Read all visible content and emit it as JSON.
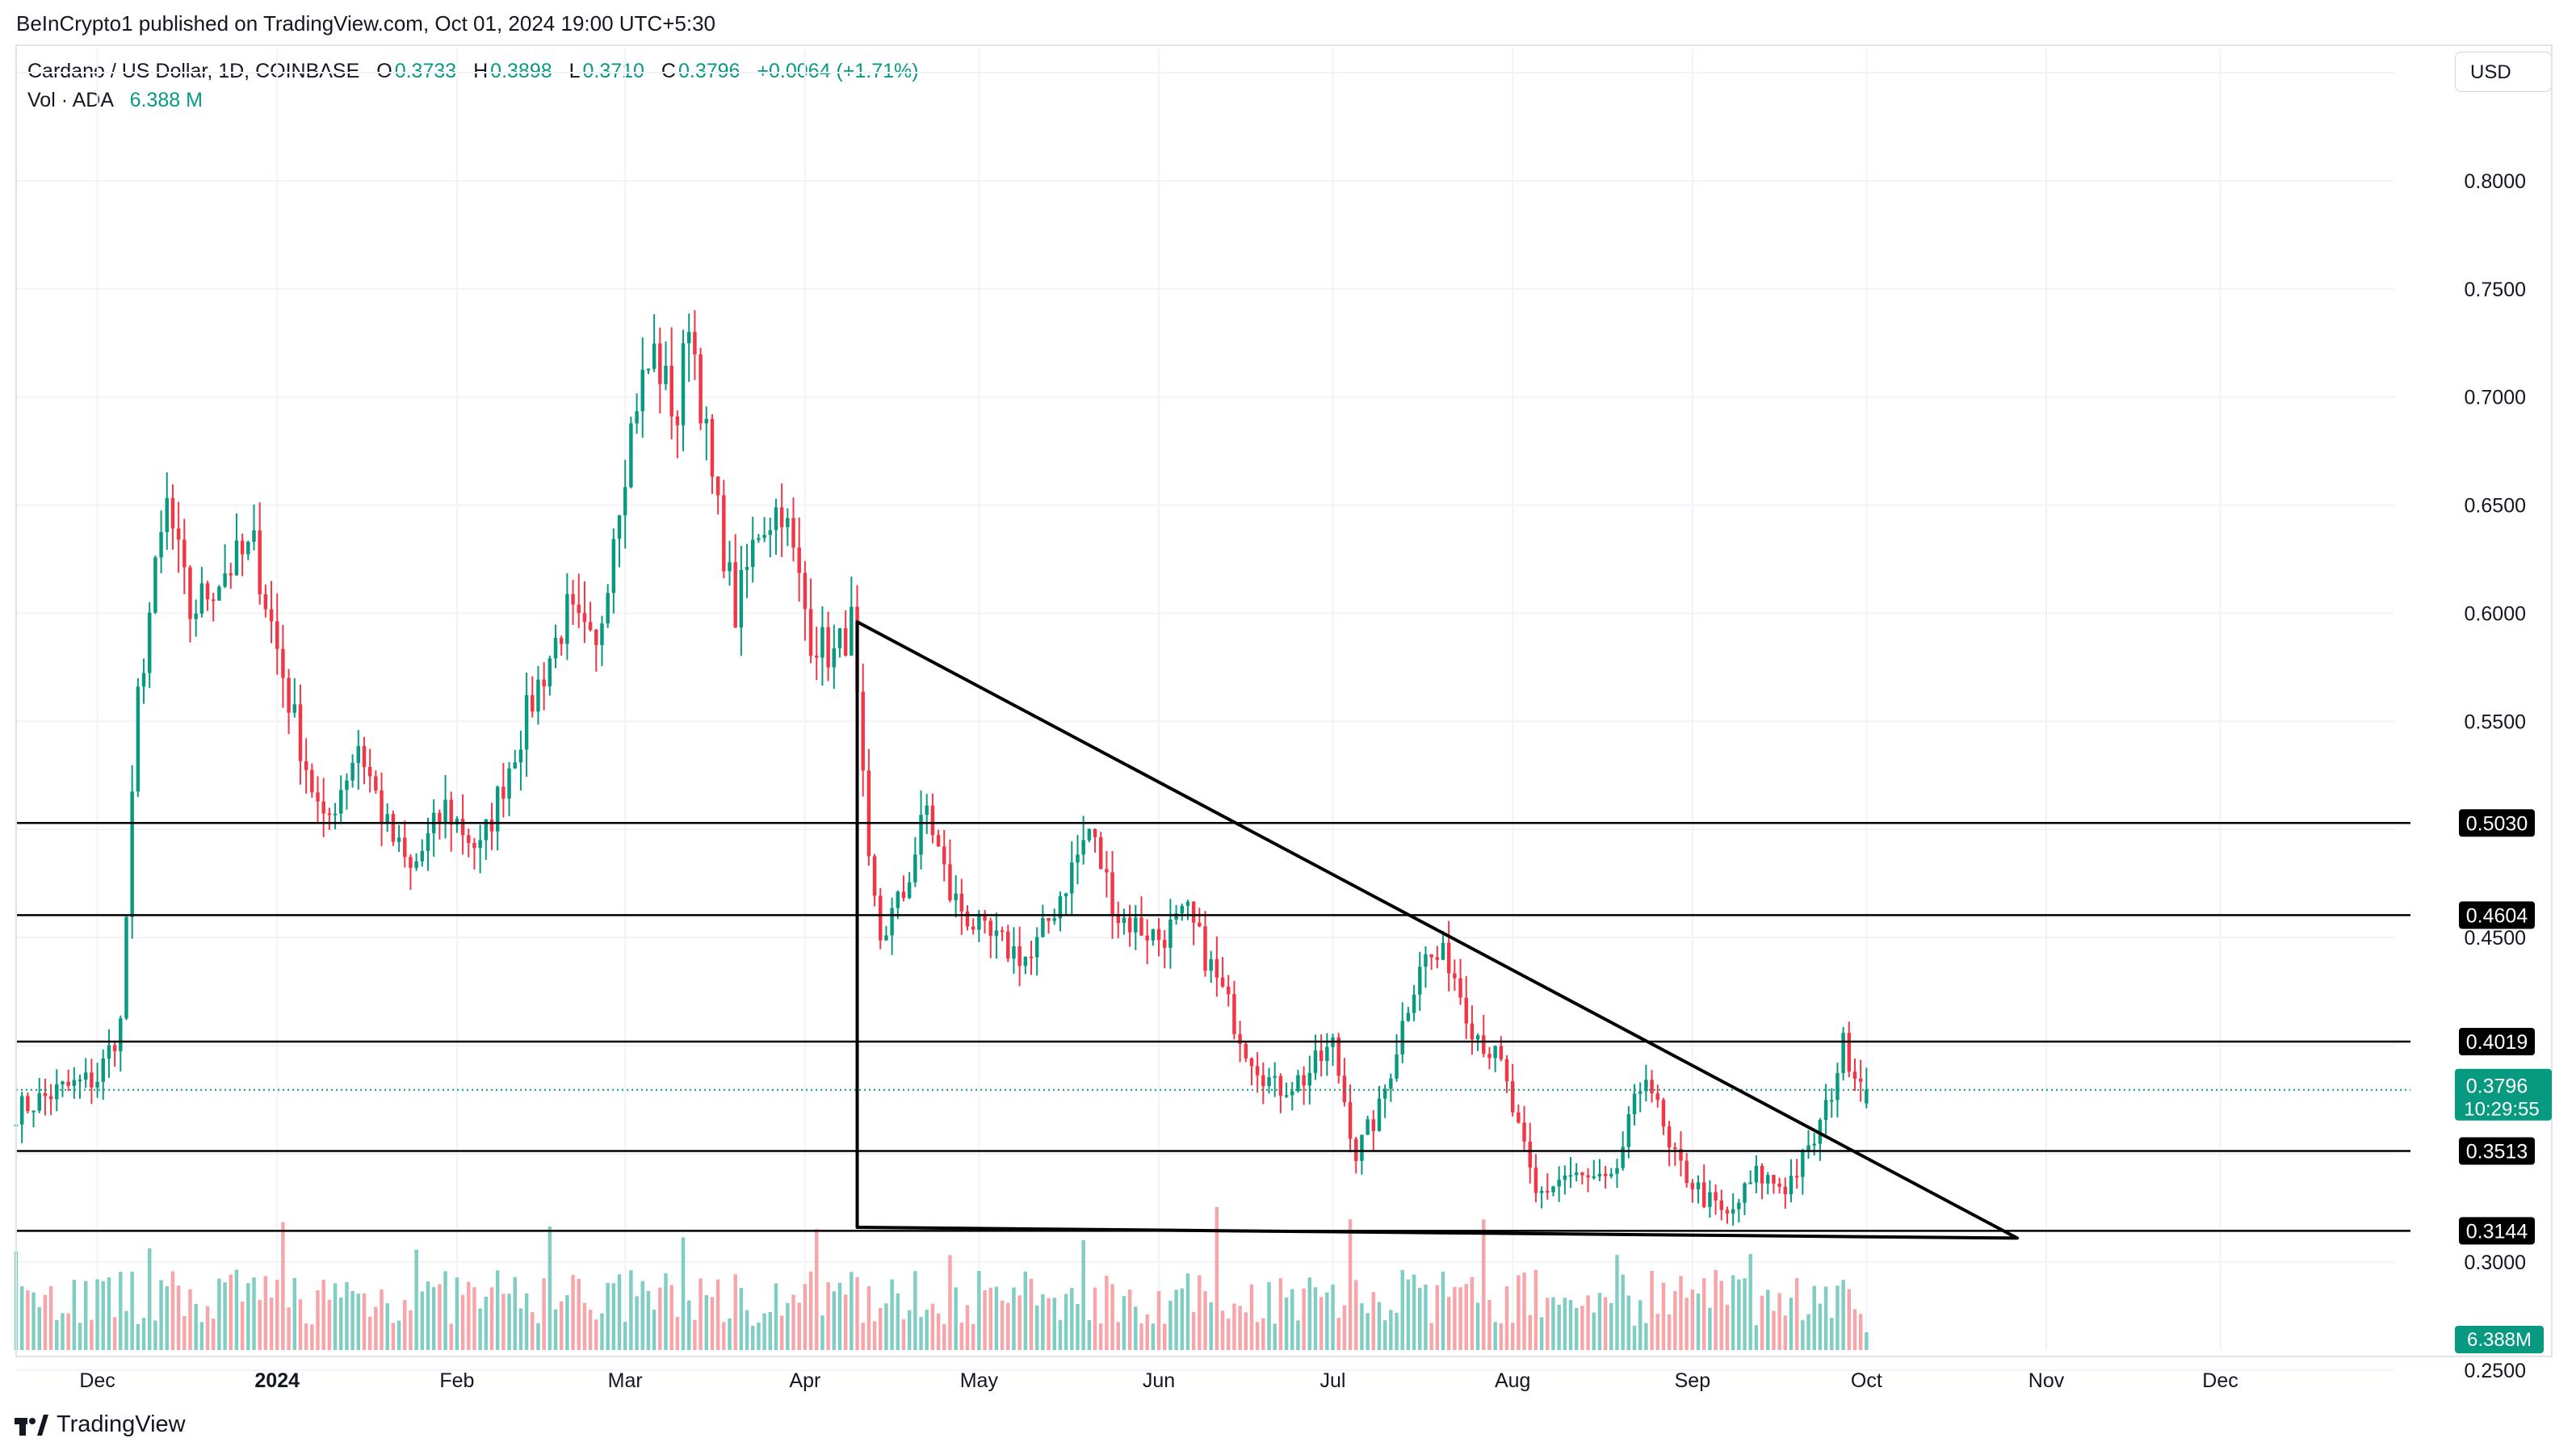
{
  "publisher_line": "BeInCrypto1 published on TradingView.com, Oct 01, 2024 19:00 UTC+5:30",
  "legend": {
    "symbol": "Cardano / US Dollar, 1D, COINBASE",
    "o_label": "O",
    "o_value": "0.3733",
    "h_label": "H",
    "h_value": "0.3898",
    "l_label": "L",
    "l_value": "0.3710",
    "c_label": "C",
    "c_value": "0.3796",
    "change": "+0.0064 (+1.71%)",
    "vol_label": "Vol · ADA",
    "vol_value": "6.388 M"
  },
  "currency_button": "USD",
  "footer_brand": "TradingView",
  "colors": {
    "up": "#089981",
    "down": "#F23645",
    "vol_up": "#7FCDC3",
    "vol_down": "#F7A5A9",
    "grid": "#F0F3FA",
    "line": "#000000",
    "last_price": "#089981"
  },
  "chart_data": {
    "type": "candlestick",
    "symbol": "Cardano / US Dollar",
    "interval": "1D",
    "exchange": "COINBASE",
    "x_ticks": [
      "Dec",
      "2024",
      "Feb",
      "Mar",
      "Apr",
      "May",
      "Jun",
      "Jul",
      "Aug",
      "Sep",
      "Oct",
      "Nov",
      "Dec"
    ],
    "y_ticks": [
      "0.2500",
      "0.3000",
      "0.4500",
      "0.5500",
      "0.6000",
      "0.6500",
      "0.7000",
      "0.7500",
      "0.8000"
    ],
    "ylim": [
      0.26,
      0.85
    ],
    "xlim": [
      "2023-11-17",
      "2024-12-31"
    ],
    "grid": true,
    "scale": "linear",
    "last_price": {
      "value": "0.3796",
      "countdown": "10:29:55"
    },
    "volume_last": "6.388M",
    "horizontal_levels": [
      {
        "value": 0.503,
        "label": "0.5030"
      },
      {
        "value": 0.4604,
        "label": "0.4604"
      },
      {
        "value": 0.4019,
        "label": "0.4019"
      },
      {
        "value": 0.3513,
        "label": "0.3513"
      },
      {
        "value": 0.3144,
        "label": "0.3144"
      }
    ],
    "triangle": [
      {
        "date": "2024-04-10",
        "price": 0.596
      },
      {
        "date": "2024-10-27",
        "price": 0.311
      },
      {
        "date": "2024-04-10",
        "price": 0.316
      }
    ],
    "ohlc_keypoints": [
      [
        "2023-11-17",
        0.37
      ],
      [
        "2023-11-25",
        0.38
      ],
      [
        "2023-12-01",
        0.385
      ],
      [
        "2023-12-05",
        0.41
      ],
      [
        "2023-12-08",
        0.56
      ],
      [
        "2023-12-10",
        0.6
      ],
      [
        "2023-12-13",
        0.65
      ],
      [
        "2023-12-17",
        0.6
      ],
      [
        "2023-12-23",
        0.62
      ],
      [
        "2023-12-28",
        0.63
      ],
      [
        "2024-01-03",
        0.56
      ],
      [
        "2024-01-09",
        0.5
      ],
      [
        "2024-01-15",
        0.54
      ],
      [
        "2024-01-20",
        0.5
      ],
      [
        "2024-01-24",
        0.48
      ],
      [
        "2024-01-30",
        0.51
      ],
      [
        "2024-02-05",
        0.49
      ],
      [
        "2024-02-10",
        0.53
      ],
      [
        "2024-02-14",
        0.56
      ],
      [
        "2024-02-20",
        0.6
      ],
      [
        "2024-02-25",
        0.58
      ],
      [
        "2024-02-28",
        0.64
      ],
      [
        "2024-03-03",
        0.7
      ],
      [
        "2024-03-06",
        0.72
      ],
      [
        "2024-03-10",
        0.69
      ],
      [
        "2024-03-12",
        0.74
      ],
      [
        "2024-03-16",
        0.66
      ],
      [
        "2024-03-20",
        0.6
      ],
      [
        "2024-03-24",
        0.64
      ],
      [
        "2024-03-28",
        0.65
      ],
      [
        "2024-04-02",
        0.59
      ],
      [
        "2024-04-06",
        0.58
      ],
      [
        "2024-04-09",
        0.595
      ],
      [
        "2024-04-12",
        0.48
      ],
      [
        "2024-04-14",
        0.45
      ],
      [
        "2024-04-18",
        0.47
      ],
      [
        "2024-04-22",
        0.51
      ],
      [
        "2024-04-26",
        0.47
      ],
      [
        "2024-05-02",
        0.45
      ],
      [
        "2024-05-10",
        0.44
      ],
      [
        "2024-05-15",
        0.47
      ],
      [
        "2024-05-20",
        0.5
      ],
      [
        "2024-05-25",
        0.46
      ],
      [
        "2024-06-01",
        0.45
      ],
      [
        "2024-06-06",
        0.46
      ],
      [
        "2024-06-11",
        0.43
      ],
      [
        "2024-06-16",
        0.4
      ],
      [
        "2024-06-21",
        0.38
      ],
      [
        "2024-06-26",
        0.385
      ],
      [
        "2024-07-01",
        0.4
      ],
      [
        "2024-07-05",
        0.35
      ],
      [
        "2024-07-09",
        0.37
      ],
      [
        "2024-07-13",
        0.41
      ],
      [
        "2024-07-16",
        0.44
      ],
      [
        "2024-07-21",
        0.44
      ],
      [
        "2024-07-25",
        0.41
      ],
      [
        "2024-07-30",
        0.39
      ],
      [
        "2024-08-03",
        0.35
      ],
      [
        "2024-08-05",
        0.33
      ],
      [
        "2024-08-10",
        0.34
      ],
      [
        "2024-08-18",
        0.335
      ],
      [
        "2024-08-24",
        0.39
      ],
      [
        "2024-08-28",
        0.35
      ],
      [
        "2024-09-03",
        0.33
      ],
      [
        "2024-09-07",
        0.32
      ],
      [
        "2024-09-12",
        0.34
      ],
      [
        "2024-09-17",
        0.335
      ],
      [
        "2024-09-21",
        0.35
      ],
      [
        "2024-09-24",
        0.37
      ],
      [
        "2024-09-27",
        0.4
      ],
      [
        "2024-10-01",
        0.3796
      ]
    ]
  }
}
